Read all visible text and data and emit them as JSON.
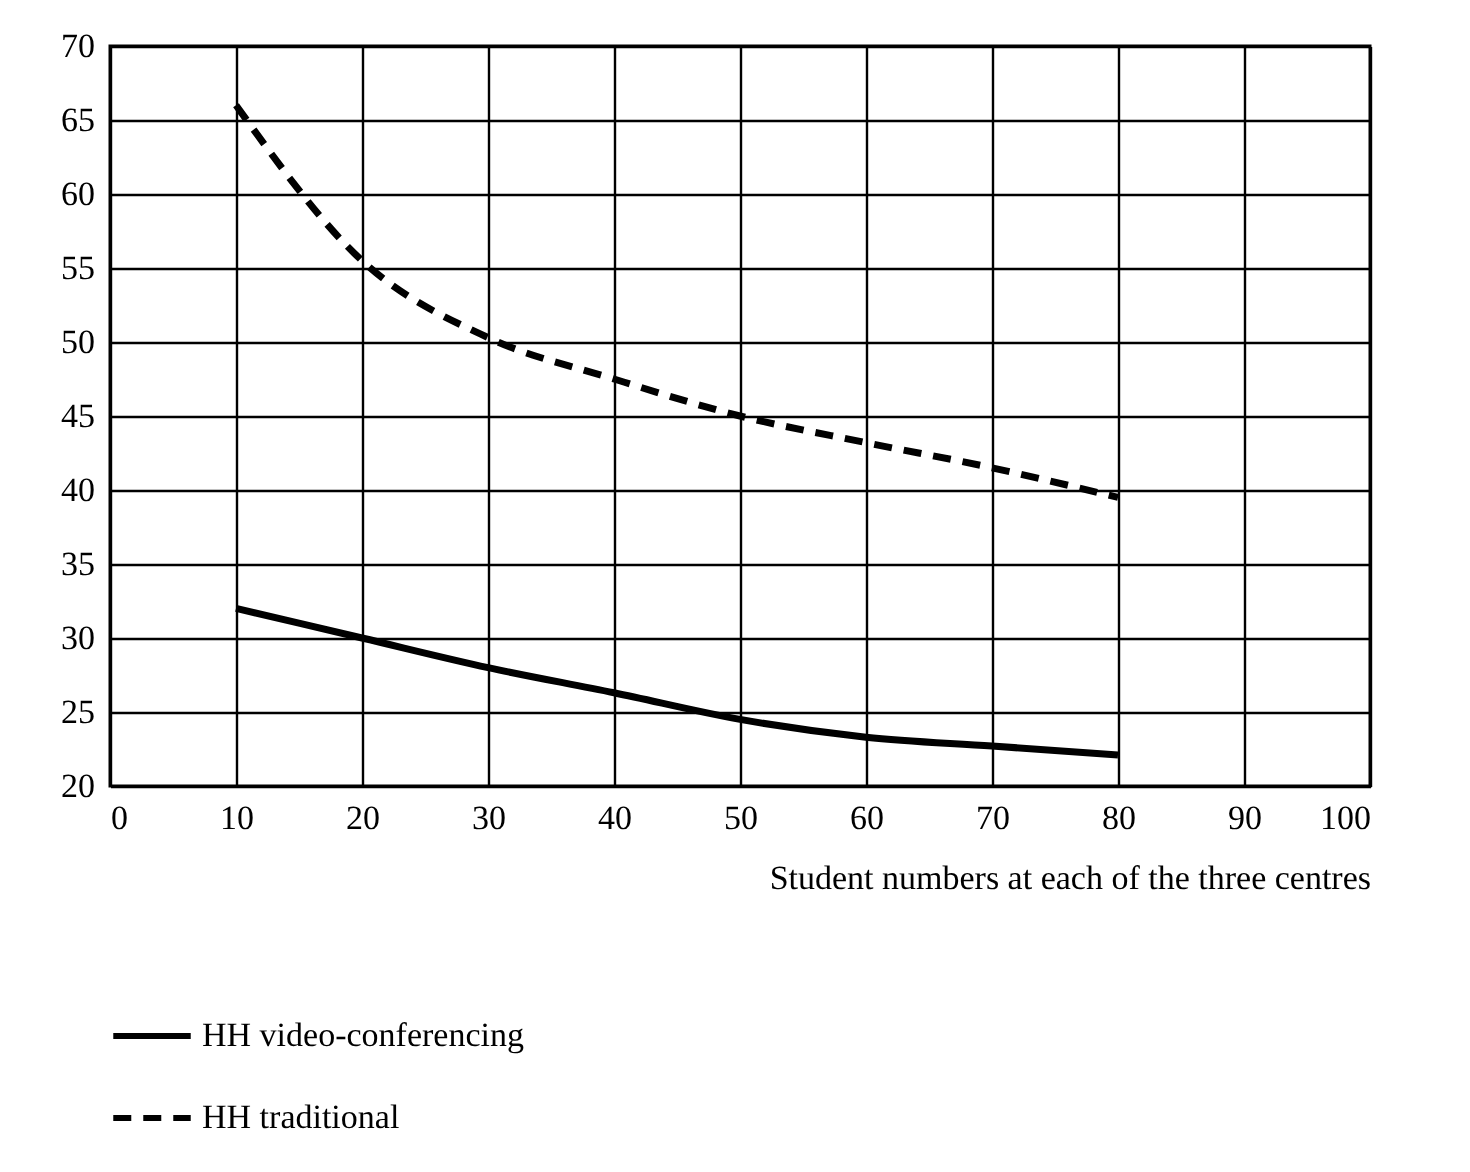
{
  "chart_data": {
    "type": "line",
    "xlabel": "Student numbers at each of the three centres",
    "x": [
      10,
      20,
      30,
      40,
      50,
      60,
      70,
      80
    ],
    "series": [
      {
        "name": "HH video-conferencing",
        "color": "#000000",
        "line_style": "solid",
        "values": [
          32,
          30,
          28,
          26.3,
          24.5,
          23.3,
          22.7,
          22.1
        ]
      },
      {
        "name": "HH traditional",
        "color": "#000000",
        "line_style": "dashed",
        "values": [
          66,
          55.5,
          50.3,
          47.5,
          45,
          43.2,
          41.5,
          39.5
        ]
      }
    ],
    "xlim": [
      0,
      100
    ],
    "xticks": [
      0,
      10,
      20,
      30,
      40,
      50,
      60,
      70,
      80,
      90,
      100
    ],
    "ylim": [
      20,
      70
    ],
    "yticks": [
      20,
      25,
      30,
      35,
      40,
      45,
      50,
      55,
      60,
      65,
      70
    ],
    "grid": true,
    "legend": "bottom left",
    "marker": "none"
  }
}
